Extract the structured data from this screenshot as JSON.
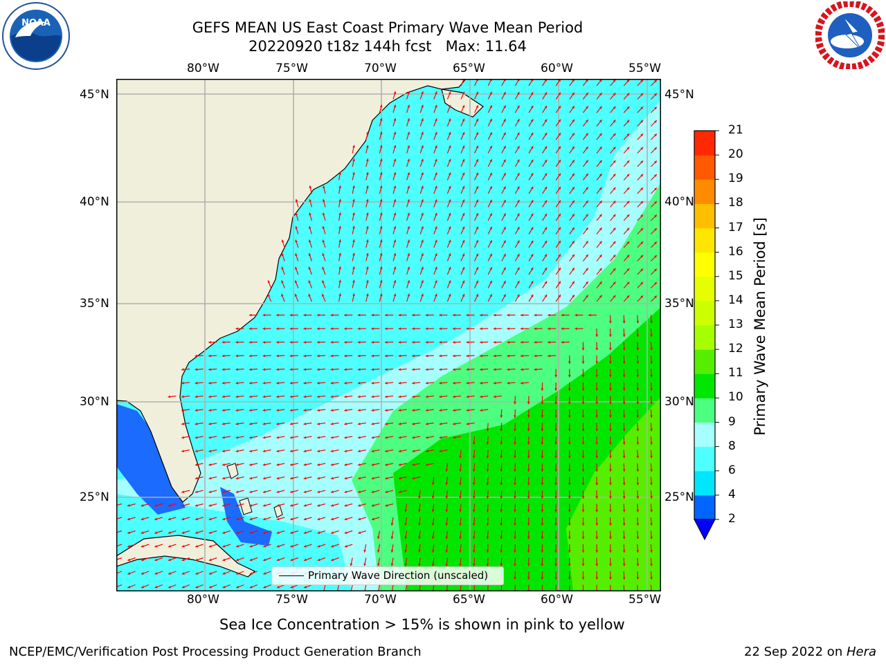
{
  "title": {
    "line1": "GEFS MEAN US East Coast Primary Wave Mean Period",
    "line2": "20220920 t18z 144h fcst   Max: 11.64"
  },
  "map": {
    "lon_labels": [
      "80°W",
      "75°W",
      "70°W",
      "65°W",
      "60°W",
      "55°W"
    ],
    "lat_labels": [
      "45°N",
      "40°N",
      "35°N",
      "30°N",
      "25°N"
    ],
    "legend_label": "Primary Wave Direction (unscaled)",
    "arrow_color": "#ff0000",
    "land_color": "#efefdc"
  },
  "colorbar": {
    "label": "Primary Wave Mean Period [s]",
    "ticks": [
      "2",
      "4",
      "6",
      "8",
      "9",
      "10",
      "11",
      "12",
      "13",
      "14",
      "15",
      "16",
      "17",
      "18",
      "19",
      "20",
      "21"
    ],
    "colors": [
      "#0066ff",
      "#00e6ff",
      "#4dffff",
      "#a6ffff",
      "#4dff80",
      "#00e600",
      "#55ee00",
      "#a6ff00",
      "#ccff00",
      "#e6ff00",
      "#ffff00",
      "#ffe600",
      "#ffbf00",
      "#ff8c00",
      "#ff5a00",
      "#ff2800",
      "#ff0000"
    ],
    "extend_color": "#0000ff"
  },
  "caption": "Sea Ice Concentration > 15% is shown in pink to yellow",
  "footer": {
    "left": "NCEP/EMC/Verification Post Processing Product Generation Branch",
    "right_prefix": "22 Sep 2022 on ",
    "right_host": "Hera"
  },
  "logos": {
    "noaa_text": "NOAA",
    "nws_text": "NATIONAL WEATHER SERVICE"
  }
}
